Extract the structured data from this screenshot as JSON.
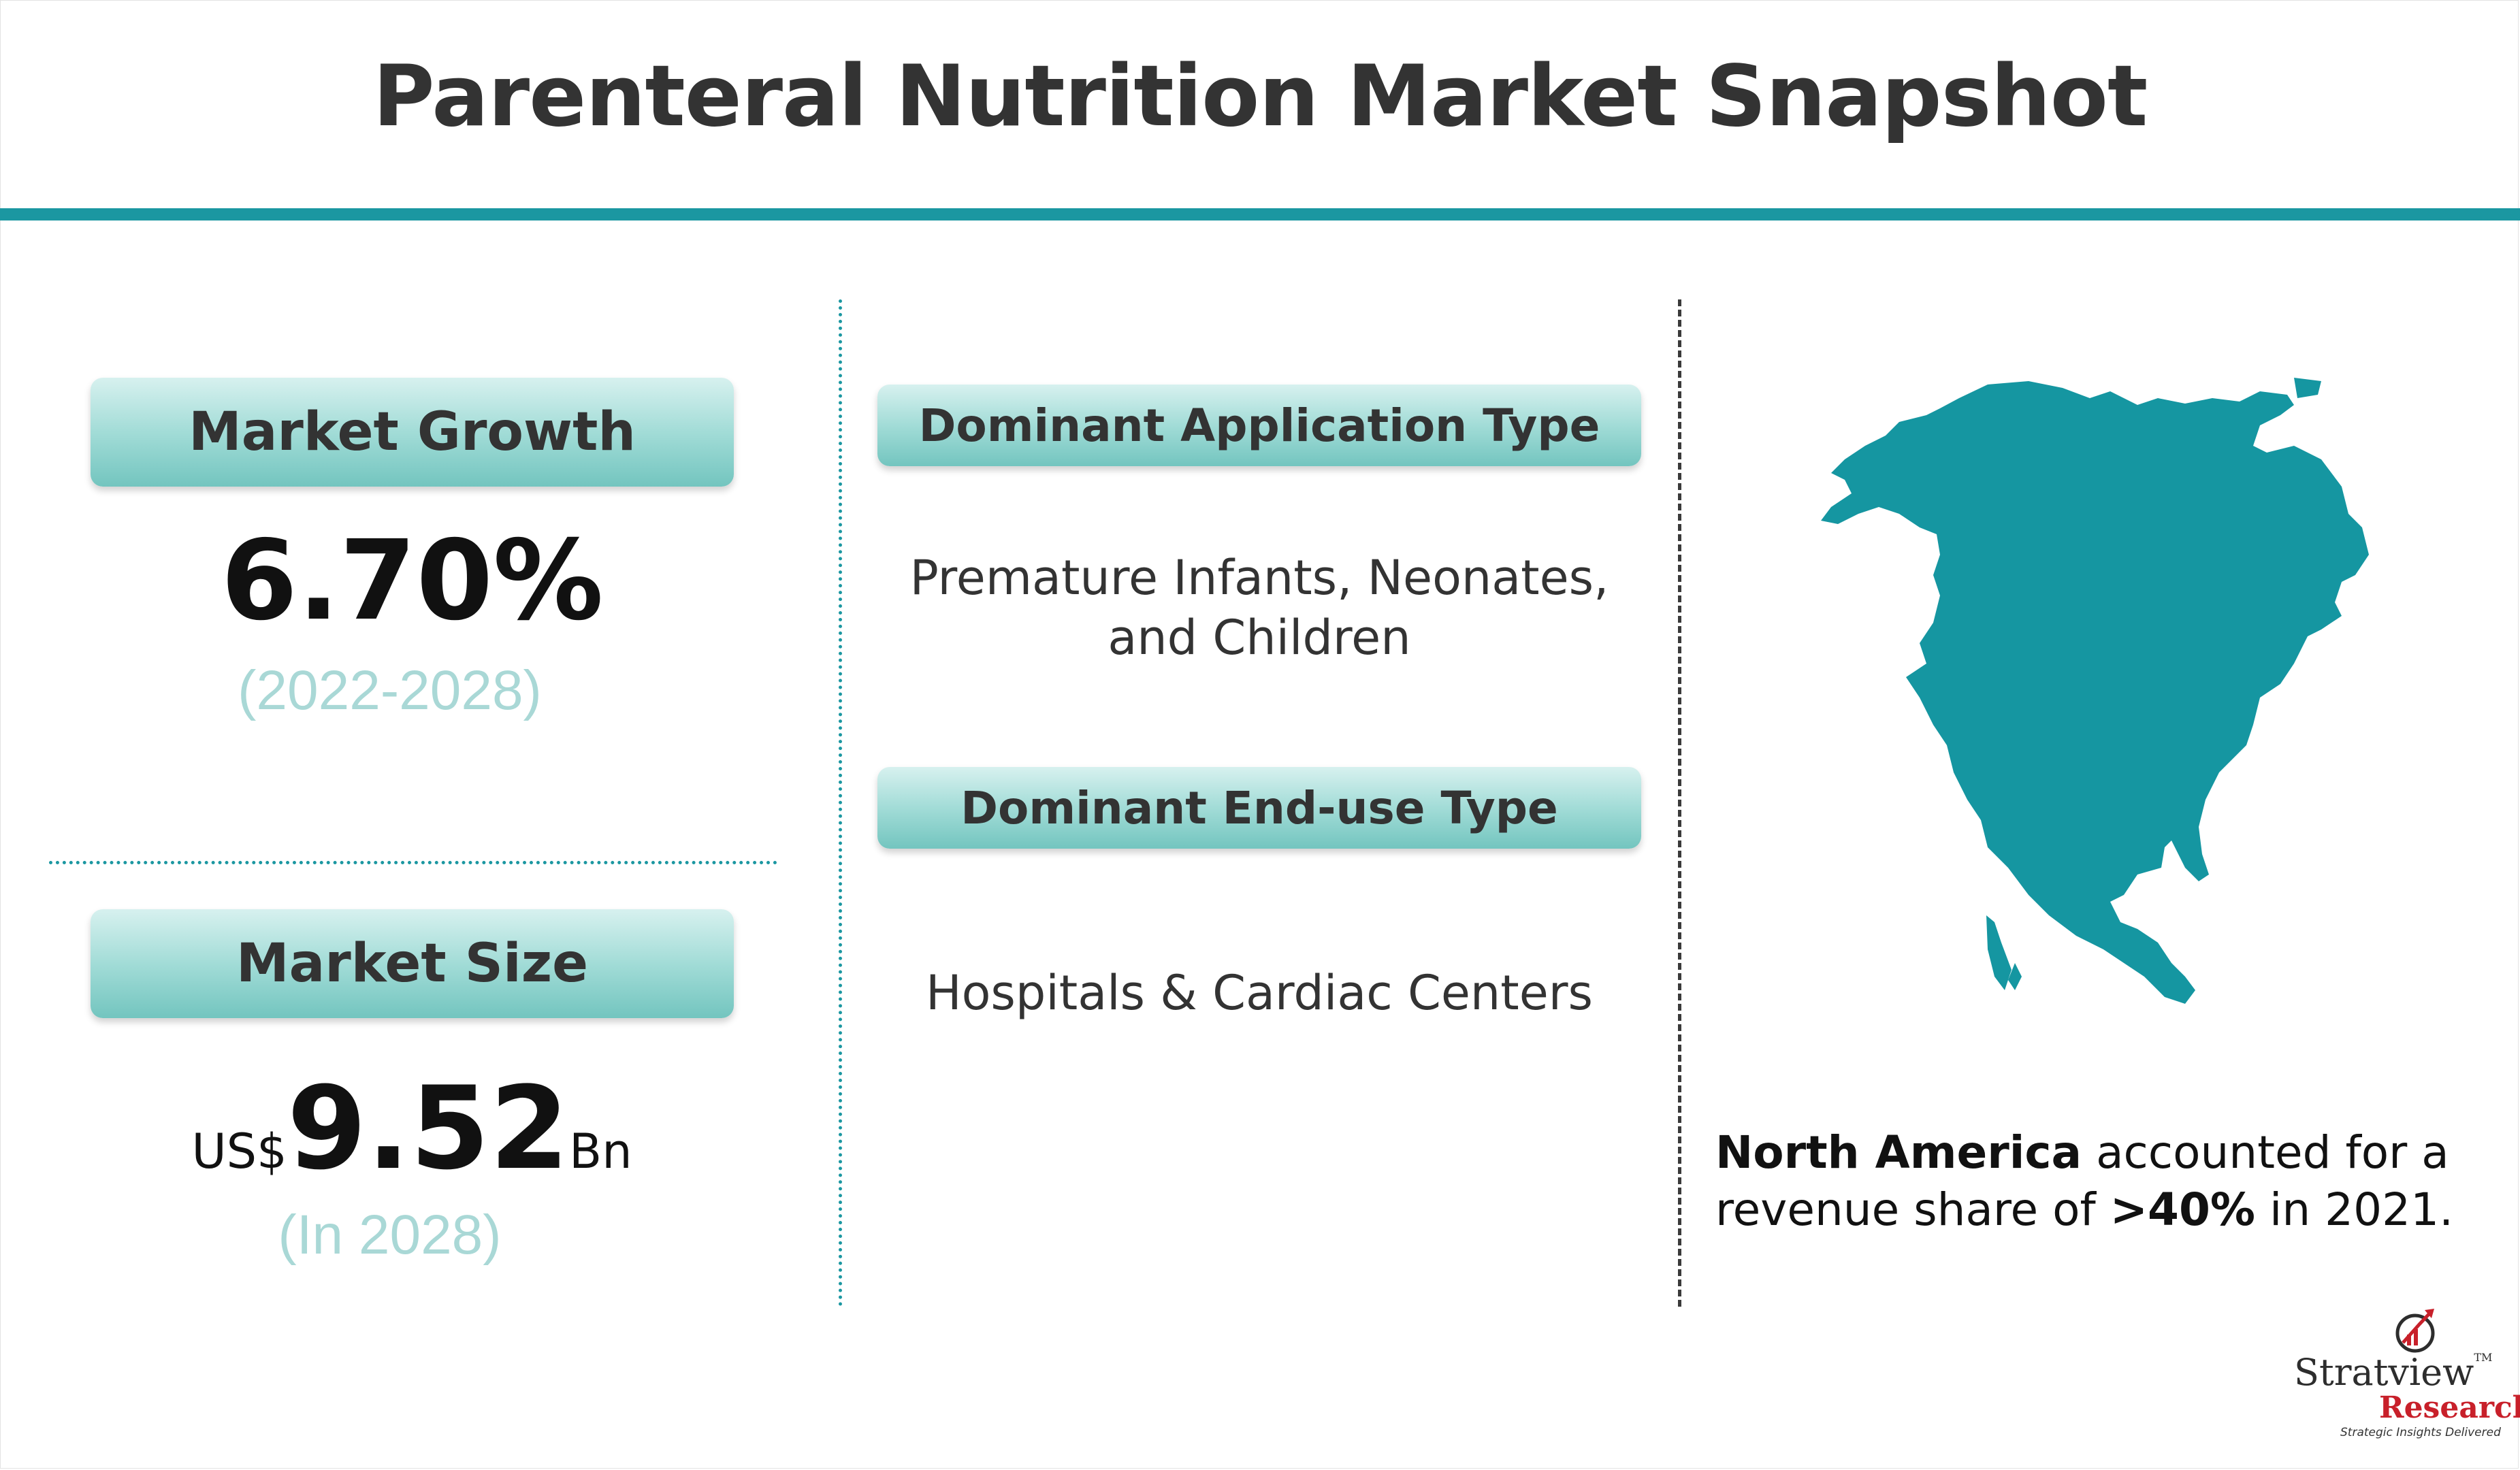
{
  "title": "Parenteral Nutrition Market Snapshot",
  "market_growth": {
    "label": "Market Growth",
    "value": "6.70%",
    "period": "(2022-2028)"
  },
  "market_size": {
    "label": "Market Size",
    "prefix": "US$",
    "value": "9.52",
    "unit": "Bn",
    "period": "(In 2028)"
  },
  "application": {
    "label": "Dominant Application Type",
    "value_line1": "Premature Infants, Neonates,",
    "value_line2": "and Children"
  },
  "end_use": {
    "label": "Dominant End-use Type",
    "value": "Hospitals & Cardiac Centers"
  },
  "region": {
    "name": "North America",
    "text_mid": " accounted for a revenue share of ",
    "share": ">40%",
    "text_end": " in 2021."
  },
  "logo": {
    "brand": "Stratview",
    "tm": "TM",
    "research": "Research",
    "tagline": "Strategic Insights Delivered"
  },
  "colors": {
    "accent": "#1b97a1",
    "map_fill": "#1596a1",
    "pill_light": "#d7f1ef",
    "pill_dark": "#73c5bf",
    "muted_text": "#a9d8d6",
    "logo_red": "#c8202a"
  },
  "icons": [
    "north-america-map-icon",
    "growth-arrow-icon"
  ]
}
